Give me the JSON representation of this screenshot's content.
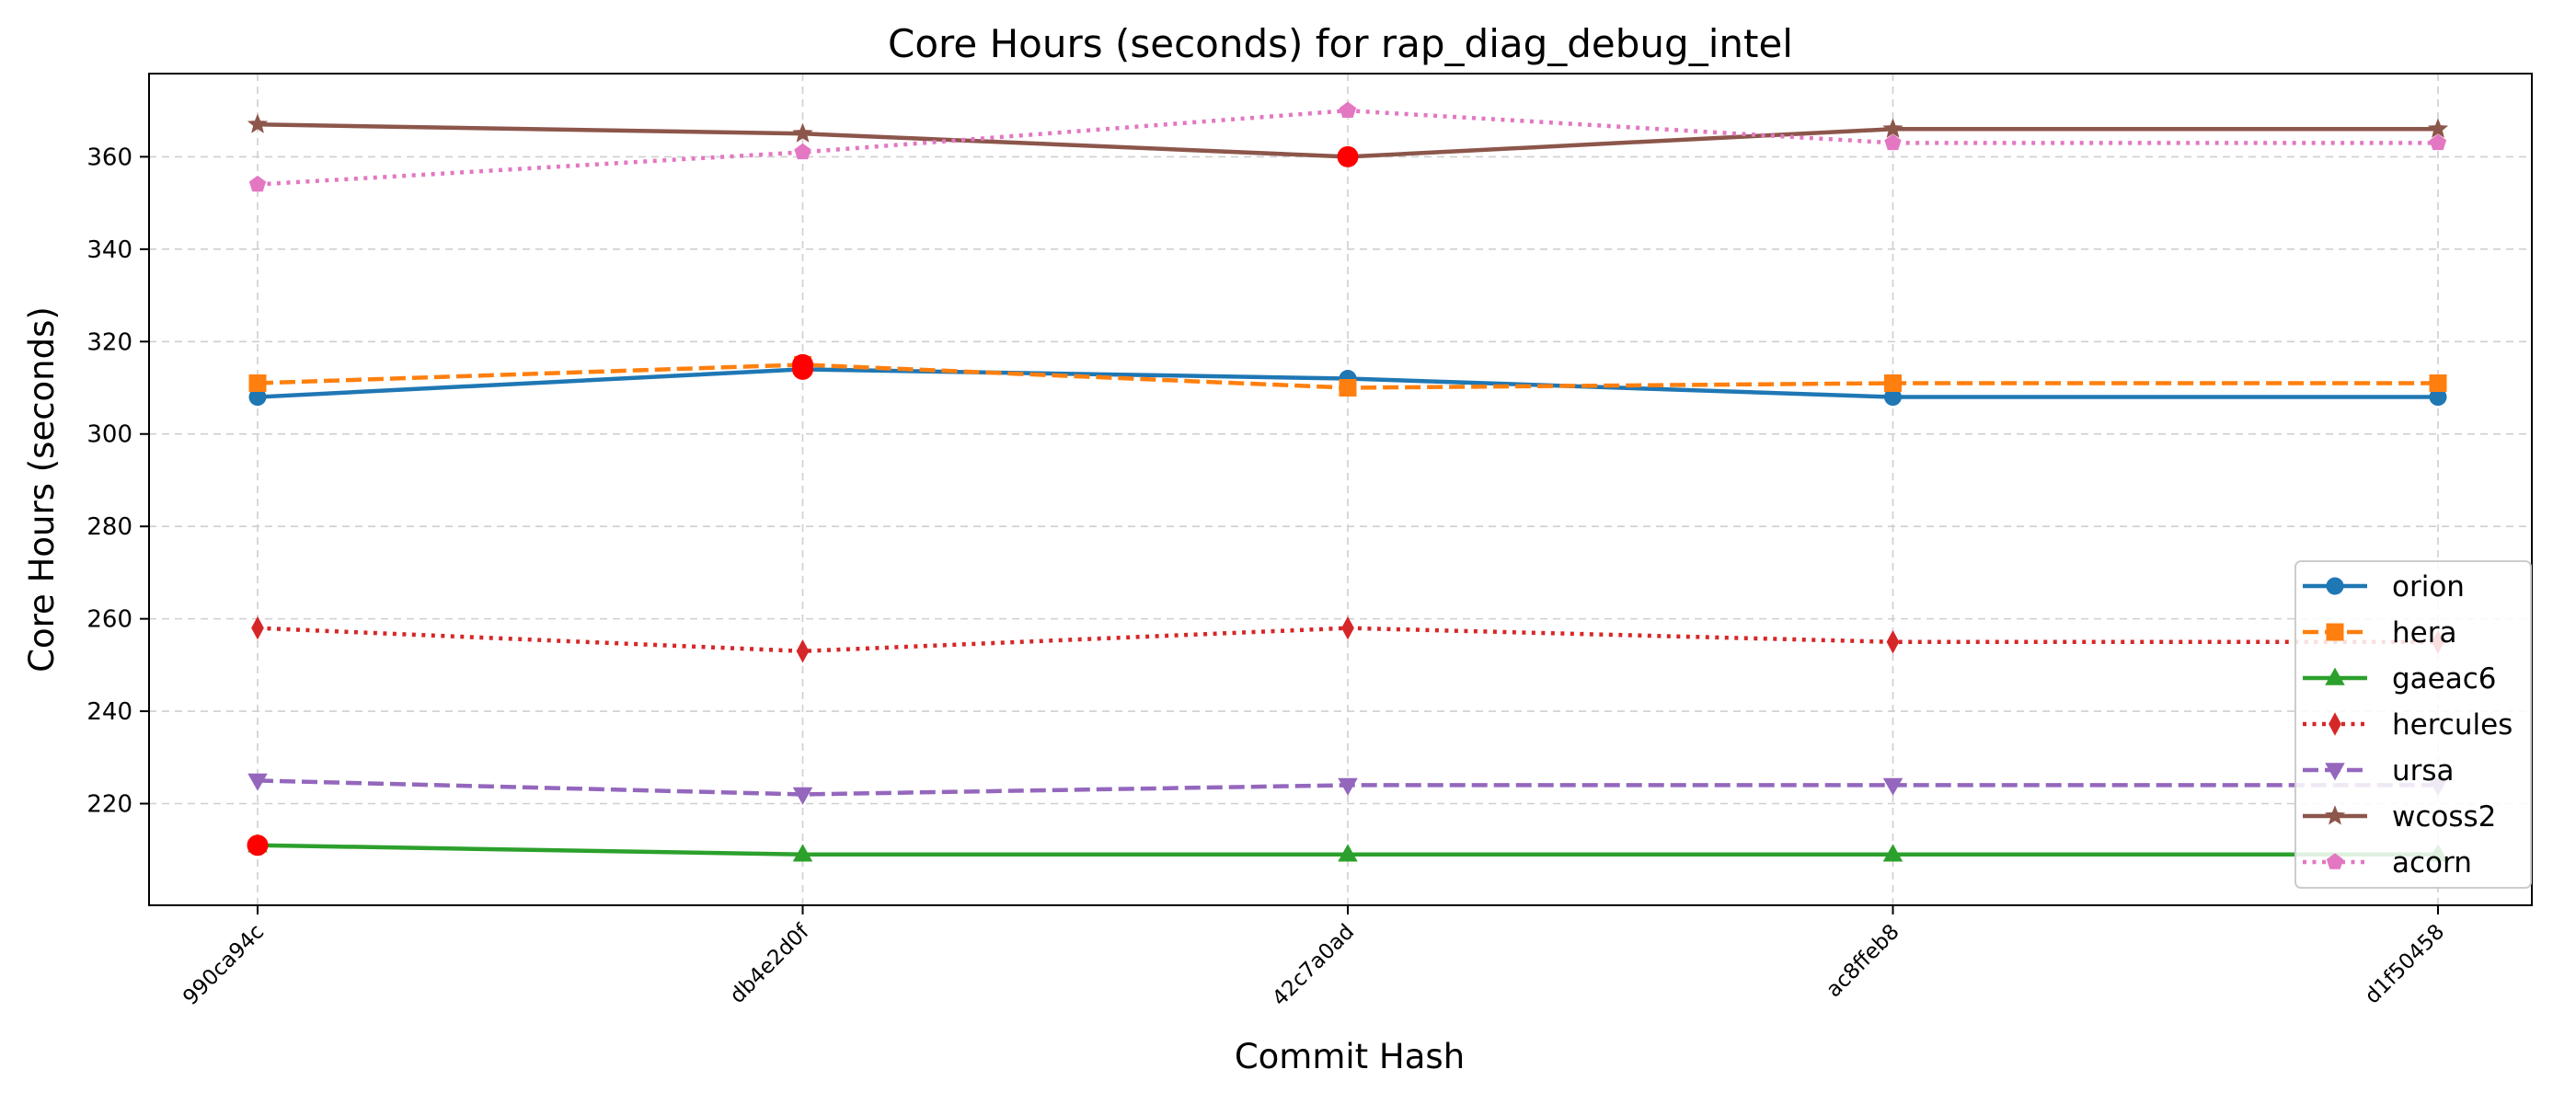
{
  "chart_data": {
    "type": "line",
    "title": "Core Hours (seconds) for rap_diag_debug_intel",
    "xlabel": "Commit Hash",
    "ylabel": "Core Hours (seconds)",
    "categories": [
      "990ca94c",
      "db4e2d0f",
      "42c7a0ad",
      "ac8ffeb8",
      "d1f50458"
    ],
    "ylim": [
      198,
      378
    ],
    "yticks": [
      220,
      240,
      260,
      280,
      300,
      320,
      340,
      360
    ],
    "grid": true,
    "legend_position": "lower-right",
    "series": [
      {
        "name": "orion",
        "values": [
          308,
          314,
          312,
          308,
          308
        ],
        "color": "#1f77b4",
        "linestyle": "solid",
        "marker": "circle"
      },
      {
        "name": "hera",
        "values": [
          311,
          315,
          310,
          311,
          311
        ],
        "color": "#ff7f0e",
        "linestyle": "dashed",
        "marker": "square"
      },
      {
        "name": "gaeac6",
        "values": [
          211,
          209,
          209,
          209,
          209
        ],
        "color": "#2ca02c",
        "linestyle": "solid",
        "marker": "triangle-up"
      },
      {
        "name": "hercules",
        "values": [
          258,
          253,
          258,
          255,
          255
        ],
        "color": "#d62728",
        "linestyle": "dotted",
        "marker": "thin-diamond"
      },
      {
        "name": "ursa",
        "values": [
          225,
          222,
          224,
          224,
          224
        ],
        "color": "#9467bd",
        "linestyle": "dashed",
        "marker": "triangle-down"
      },
      {
        "name": "wcoss2",
        "values": [
          367,
          365,
          360,
          366,
          366
        ],
        "color": "#8c564b",
        "linestyle": "solid",
        "marker": "star"
      },
      {
        "name": "acorn",
        "values": [
          354,
          361,
          370,
          363,
          363
        ],
        "color": "#e377c2",
        "linestyle": "dotted",
        "marker": "pentagon"
      }
    ],
    "highlights": [
      {
        "category": "990ca94c",
        "value": 211,
        "color": "#ff0000"
      },
      {
        "category": "db4e2d0f",
        "value": 315,
        "color": "#ff0000"
      },
      {
        "category": "db4e2d0f",
        "value": 314,
        "color": "#ff0000"
      },
      {
        "category": "42c7a0ad",
        "value": 360,
        "color": "#ff0000"
      }
    ]
  }
}
